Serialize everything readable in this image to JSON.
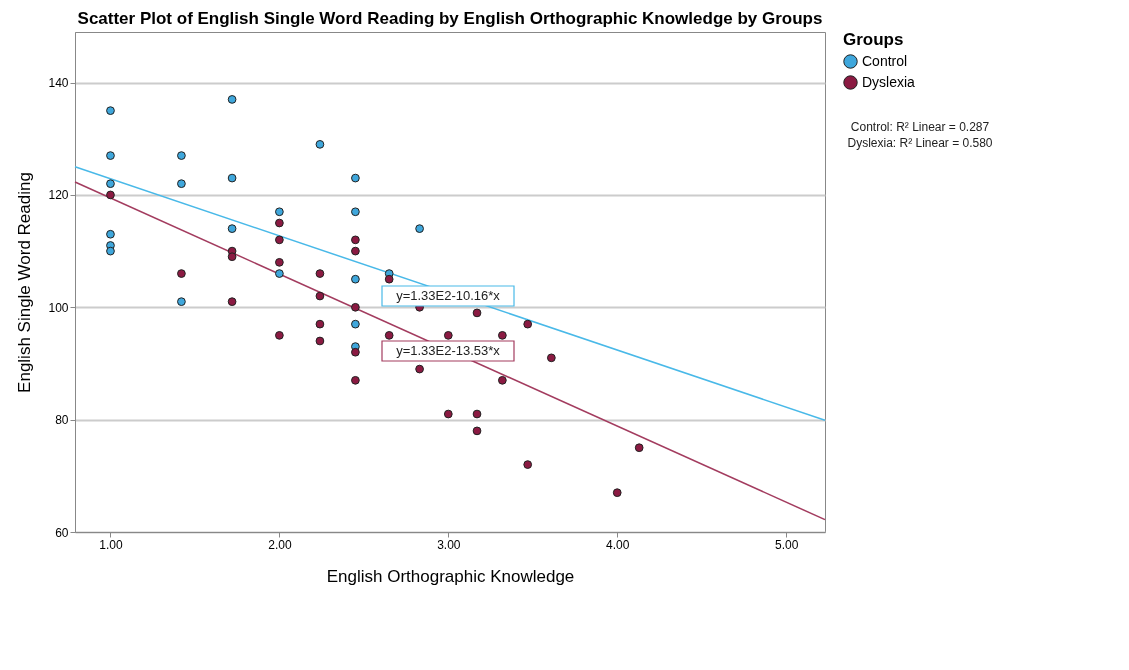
{
  "chart_data": {
    "type": "scatter",
    "title": "Scatter Plot of English Single Word Reading by English Orthographic Knowledge by Groups",
    "xlabel": "English Orthographic Knowledge",
    "ylabel": "English Single Word Reading",
    "legend_title": "Groups",
    "xlim": [
      0.79,
      5.23
    ],
    "ylim": [
      60,
      149
    ],
    "xticks": [
      {
        "value": 1,
        "label": "1.00"
      },
      {
        "value": 2,
        "label": "2.00"
      },
      {
        "value": 3,
        "label": "3.00"
      },
      {
        "value": 4,
        "label": "4.00"
      },
      {
        "value": 5,
        "label": "5.00"
      }
    ],
    "yticks": [
      60,
      80,
      100,
      120,
      140
    ],
    "grid": "y",
    "legend": "top right",
    "marker": "circle",
    "series": [
      {
        "name": "Control",
        "color": "#3fa7dc",
        "x": [
          1,
          1,
          1,
          1,
          1,
          1,
          1.42,
          1.42,
          1.42,
          1.72,
          1.72,
          1.72,
          2,
          2,
          2.24,
          2.45,
          2.45,
          2.45,
          2.45,
          2.45,
          2.65,
          2.83
        ],
        "values": [
          135,
          127,
          122,
          113,
          111,
          110,
          127,
          122,
          101,
          137,
          123,
          114,
          117,
          106,
          129,
          123,
          117,
          105,
          97,
          93,
          106,
          114
        ]
      },
      {
        "name": "Dyslexia",
        "color": "#8b1a42",
        "x": [
          1,
          1.42,
          1.72,
          1.72,
          1.72,
          2,
          2,
          2,
          2,
          2.24,
          2.24,
          2.24,
          2.24,
          2.45,
          2.45,
          2.45,
          2.45,
          2.45,
          2.65,
          2.65,
          2.83,
          2.83,
          3,
          3,
          3.17,
          3.17,
          3.17,
          3.32,
          3.32,
          3.47,
          3.47,
          3.61,
          4,
          4.13
        ],
        "values": [
          120,
          106,
          110,
          109,
          101,
          115,
          112,
          108,
          95,
          106,
          102,
          97,
          94,
          112,
          110,
          100,
          92,
          87,
          105,
          95,
          100,
          89,
          95,
          81,
          99,
          81,
          78,
          95,
          87,
          97,
          72,
          91,
          67,
          75
        ]
      },
      {
        "color": "#49b9e8",
        "type": "line",
        "marker": "none",
        "line_style": "solid",
        "x": [
          0.79,
          5.23
        ],
        "values": [
          125,
          79.9
        ]
      },
      {
        "color": "#a33c5f",
        "type": "line",
        "marker": "none",
        "line_style": "solid",
        "x": [
          0.79,
          5.23
        ],
        "values": [
          122.3,
          62.2
        ]
      }
    ],
    "annotations": [
      "y=1.33E2-10.16*x",
      "y=1.33E2-13.53*x",
      "Control: R² Linear = 0.287",
      "Dyslexia: R² Linear = 0.580"
    ]
  }
}
